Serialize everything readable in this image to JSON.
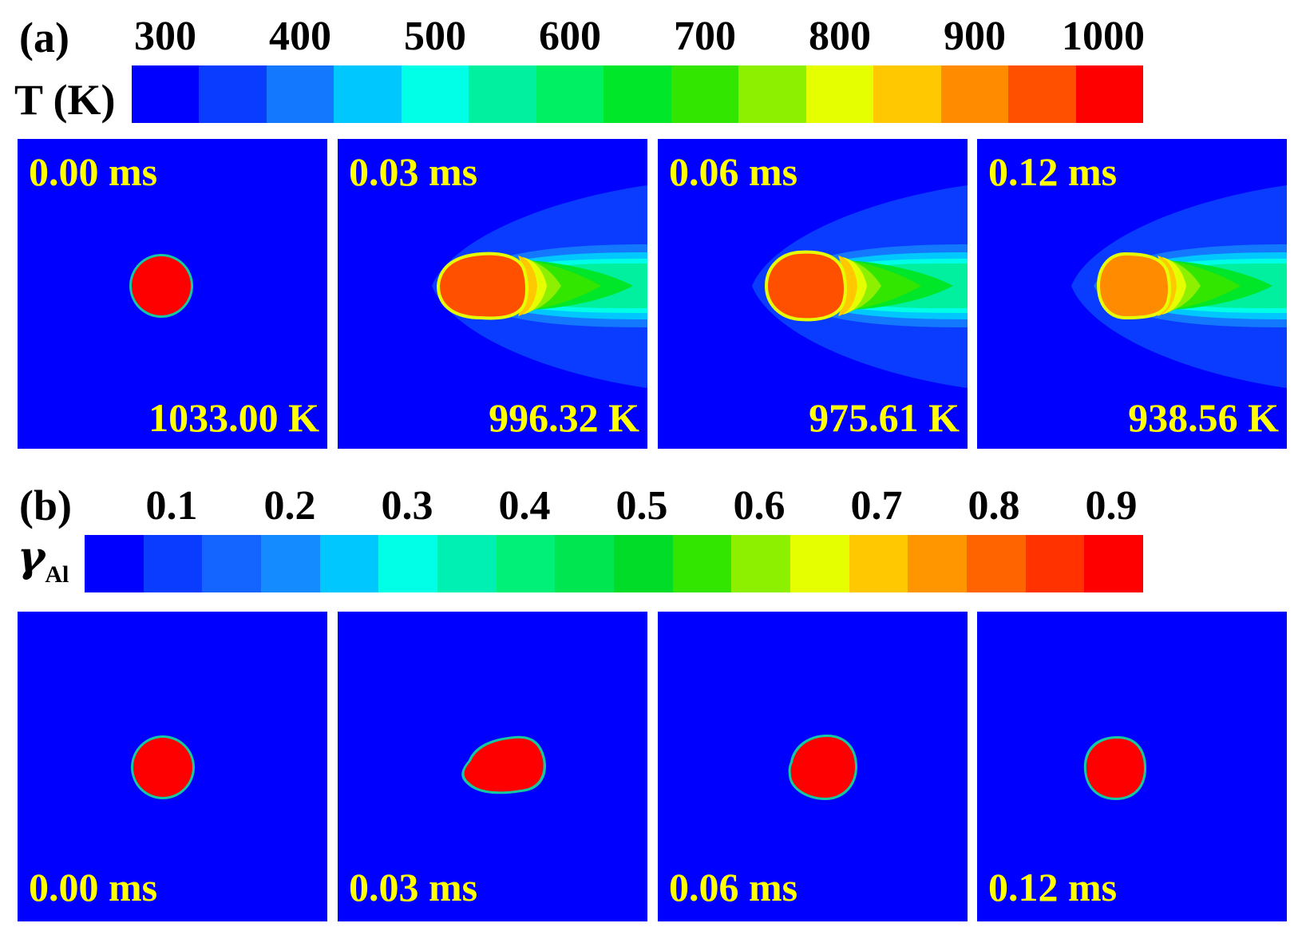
{
  "panel_a": {
    "label": "(a)",
    "colorbar_title": "T (K)",
    "ticks": [
      "300",
      "400",
      "500",
      "600",
      "700",
      "800",
      "900",
      "1000"
    ],
    "colors": [
      "#0000ff",
      "#0a3cff",
      "#1478ff",
      "#00c8ff",
      "#00ffe6",
      "#00f0a0",
      "#00f064",
      "#00e628",
      "#32e600",
      "#8cf000",
      "#e6ff00",
      "#ffc800",
      "#ff8c00",
      "#ff5000",
      "#ff0000"
    ],
    "frames": [
      {
        "time": "0.00 ms",
        "temp": "1033.00 K",
        "core_color": "#ff0000"
      },
      {
        "time": "0.03 ms",
        "temp": "996.32 K",
        "core_color": "#ff5000"
      },
      {
        "time": "0.06 ms",
        "temp": "975.61 K",
        "core_color": "#ff5000"
      },
      {
        "time": "0.12 ms",
        "temp": "938.56 K",
        "core_color": "#ff8c00"
      }
    ]
  },
  "panel_b": {
    "label": "(b)",
    "colorbar_symbol": "γ",
    "colorbar_subscript": "Al",
    "ticks": [
      "0.1",
      "0.2",
      "0.3",
      "0.4",
      "0.5",
      "0.6",
      "0.7",
      "0.8",
      "0.9"
    ],
    "colors": [
      "#0000ff",
      "#0a3cff",
      "#1464ff",
      "#148cff",
      "#00c8ff",
      "#00ffe6",
      "#00f0b4",
      "#00f078",
      "#00e650",
      "#00dc28",
      "#32e600",
      "#8cf000",
      "#e6ff00",
      "#ffc800",
      "#ff9600",
      "#ff6400",
      "#ff3200",
      "#ff0000"
    ],
    "frames": [
      {
        "time": "0.00 ms"
      },
      {
        "time": "0.03 ms"
      },
      {
        "time": "0.06 ms"
      },
      {
        "time": "0.12 ms"
      }
    ]
  },
  "colors": {
    "background": "#0000ff",
    "label_text": "#ffff00",
    "droplet": "#ff0000",
    "interface": "#14c8a0"
  }
}
